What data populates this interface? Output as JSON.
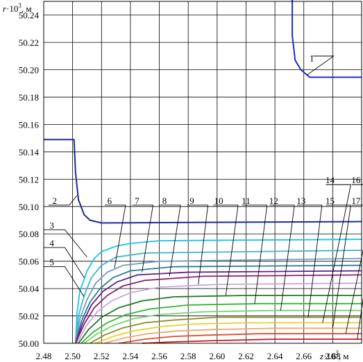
{
  "chart_data": {
    "type": "line",
    "xlabel": "z·10³, м",
    "ylabel": "r·10³, м",
    "x_label_parts": [
      "z",
      "·10",
      "3",
      ", м"
    ],
    "y_label_parts": [
      "r",
      "·10",
      "3",
      ", м"
    ],
    "xlim": [
      2.48,
      2.7
    ],
    "ylim": [
      50.0,
      50.25
    ],
    "grid": true,
    "x_ticks": [
      "2.48",
      "2.50",
      "2.52",
      "2.54",
      "2.56",
      "2.58",
      "2.60",
      "2.62",
      "2.64",
      "2.66",
      "2.68"
    ],
    "y_ticks": [
      "50.00",
      "50.02",
      "50.04",
      "50.06",
      "50.08",
      "50.10",
      "50.12",
      "50.14",
      "50.16",
      "50.18",
      "50.20",
      "50.22",
      "50.24"
    ],
    "series": [
      {
        "name": "1",
        "color": "#1a2fc8",
        "points": [
          [
            2.652,
            50.26
          ],
          [
            2.652,
            50.225
          ],
          [
            2.654,
            50.207
          ],
          [
            2.658,
            50.2
          ],
          [
            2.664,
            50.1945
          ],
          [
            2.7,
            50.1945
          ]
        ]
      },
      {
        "name": "2",
        "color": "#1c2a96",
        "points": [
          [
            2.48,
            50.149
          ],
          [
            2.501,
            50.149
          ],
          [
            2.502,
            50.125
          ],
          [
            2.504,
            50.105
          ],
          [
            2.508,
            50.094
          ],
          [
            2.512,
            50.09
          ],
          [
            2.52,
            50.088
          ],
          [
            2.7,
            50.089
          ]
        ]
      },
      {
        "name": "3",
        "color": "#19c3ea",
        "points": [
          [
            2.502,
            50.0
          ],
          [
            2.503,
            50.022
          ],
          [
            2.505,
            50.038
          ],
          [
            2.51,
            50.053
          ],
          [
            2.515,
            50.062
          ],
          [
            2.52,
            50.067
          ],
          [
            2.53,
            50.071
          ],
          [
            2.54,
            50.073
          ],
          [
            2.56,
            50.075
          ],
          [
            2.7,
            50.076
          ]
        ]
      },
      {
        "name": "4",
        "color": "#3cb7cf",
        "points": [
          [
            2.502,
            50.0
          ],
          [
            2.504,
            50.02
          ],
          [
            2.508,
            50.035
          ],
          [
            2.513,
            50.048
          ],
          [
            2.52,
            50.057
          ],
          [
            2.53,
            50.063
          ],
          [
            2.55,
            50.066
          ],
          [
            2.7,
            50.068
          ]
        ]
      },
      {
        "name": "5",
        "color": "#6d9fbe",
        "points": [
          [
            2.502,
            50.0
          ],
          [
            2.505,
            50.018
          ],
          [
            2.51,
            50.032
          ],
          [
            2.516,
            50.044
          ],
          [
            2.524,
            50.052
          ],
          [
            2.535,
            50.057
          ],
          [
            2.56,
            50.06
          ],
          [
            2.7,
            50.062
          ]
        ]
      },
      {
        "name": "6",
        "color": "#277f8e",
        "points": [
          [
            2.502,
            50.0
          ],
          [
            2.506,
            50.016
          ],
          [
            2.512,
            50.03
          ],
          [
            2.519,
            50.04
          ],
          [
            2.528,
            50.048
          ],
          [
            2.54,
            50.053
          ],
          [
            2.57,
            50.056
          ],
          [
            2.7,
            50.057
          ]
        ]
      },
      {
        "name": "7",
        "color": "#5a1d8c",
        "points": [
          [
            2.502,
            50.0
          ],
          [
            2.507,
            50.015
          ],
          [
            2.513,
            50.028
          ],
          [
            2.521,
            50.038
          ],
          [
            2.531,
            50.045
          ],
          [
            2.545,
            50.05
          ],
          [
            2.58,
            50.052
          ],
          [
            2.7,
            50.053
          ]
        ]
      },
      {
        "name": "8",
        "color": "#8a1f6e",
        "points": [
          [
            2.502,
            50.0
          ],
          [
            2.508,
            50.014
          ],
          [
            2.515,
            50.026
          ],
          [
            2.524,
            50.035
          ],
          [
            2.535,
            50.042
          ],
          [
            2.55,
            50.046
          ],
          [
            2.59,
            50.049
          ],
          [
            2.7,
            50.05
          ]
        ]
      },
      {
        "name": "9",
        "color": "#c9a6e6",
        "points": [
          [
            2.503,
            50.0
          ],
          [
            2.509,
            50.012
          ],
          [
            2.517,
            50.023
          ],
          [
            2.527,
            50.031
          ],
          [
            2.54,
            50.037
          ],
          [
            2.56,
            50.041
          ],
          [
            2.6,
            50.043
          ],
          [
            2.7,
            50.044
          ]
        ]
      },
      {
        "name": "10",
        "color": "#1c7a1c",
        "points": [
          [
            2.504,
            50.0
          ],
          [
            2.511,
            50.01
          ],
          [
            2.52,
            50.019
          ],
          [
            2.532,
            50.026
          ],
          [
            2.548,
            50.031
          ],
          [
            2.57,
            50.034
          ],
          [
            2.62,
            50.035
          ],
          [
            2.7,
            50.035
          ]
        ]
      },
      {
        "name": "11",
        "color": "#2fb82f",
        "points": [
          [
            2.506,
            50.0
          ],
          [
            2.514,
            50.008
          ],
          [
            2.524,
            50.015
          ],
          [
            2.537,
            50.021
          ],
          [
            2.553,
            50.025
          ],
          [
            2.58,
            50.028
          ],
          [
            2.63,
            50.029
          ],
          [
            2.7,
            50.029
          ]
        ]
      },
      {
        "name": "12",
        "color": "#6bd86b",
        "points": [
          [
            2.508,
            50.0
          ],
          [
            2.517,
            50.007
          ],
          [
            2.528,
            50.013
          ],
          [
            2.542,
            50.018
          ],
          [
            2.56,
            50.021
          ],
          [
            2.59,
            50.023
          ],
          [
            2.64,
            50.024
          ],
          [
            2.7,
            50.024
          ]
        ]
      },
      {
        "name": "13",
        "color": "#8a8a1e",
        "points": [
          [
            2.512,
            50.0
          ],
          [
            2.522,
            50.006
          ],
          [
            2.534,
            50.011
          ],
          [
            2.55,
            50.015
          ],
          [
            2.57,
            50.017
          ],
          [
            2.6,
            50.019
          ],
          [
            2.65,
            50.019
          ],
          [
            2.7,
            50.019
          ]
        ]
      },
      {
        "name": "14",
        "color": "#e8d030",
        "points": [
          [
            2.516,
            50.0
          ],
          [
            2.528,
            50.005
          ],
          [
            2.542,
            50.009
          ],
          [
            2.56,
            50.012
          ],
          [
            2.582,
            50.014
          ],
          [
            2.62,
            50.015
          ],
          [
            2.7,
            50.015
          ]
        ]
      },
      {
        "name": "15",
        "color": "#f0a868",
        "points": [
          [
            2.522,
            50.0
          ],
          [
            2.536,
            50.004
          ],
          [
            2.552,
            50.007
          ],
          [
            2.572,
            50.009
          ],
          [
            2.596,
            50.01
          ],
          [
            2.64,
            50.011
          ],
          [
            2.7,
            50.011
          ]
        ]
      },
      {
        "name": "16",
        "color": "#e24a2a",
        "points": [
          [
            2.532,
            50.0
          ],
          [
            2.55,
            50.003
          ],
          [
            2.57,
            50.005
          ],
          [
            2.595,
            50.006
          ],
          [
            2.63,
            50.007
          ],
          [
            2.7,
            50.007
          ]
        ]
      },
      {
        "name": "17",
        "color": "#d01818",
        "points": [
          [
            2.548,
            50.0
          ],
          [
            2.57,
            50.001
          ],
          [
            2.6,
            50.002
          ],
          [
            2.64,
            50.003
          ],
          [
            2.7,
            50.003
          ]
        ]
      }
    ],
    "labels": [
      {
        "name": "1",
        "x": 2.664,
        "y": 50.204,
        "lx": 2.672,
        "ly": 50.21,
        "cx": 2.662,
        "cy": 50.196
      },
      {
        "name": "2",
        "x": 2.486,
        "y": 50.1,
        "lx": 2.489,
        "ly": 50.101,
        "cx": 2.503,
        "cy": 50.108
      },
      {
        "name": "3",
        "x": 2.484,
        "y": 50.082,
        "lx": 2.486,
        "ly": 50.083,
        "cx": 2.51,
        "cy": 50.063
      },
      {
        "name": "4",
        "x": 2.484,
        "y": 50.069,
        "lx": 2.486,
        "ly": 50.07,
        "cx": 2.508,
        "cy": 50.048
      },
      {
        "name": "5",
        "x": 2.484,
        "y": 50.055,
        "lx": 2.486,
        "ly": 50.056,
        "cx": 2.508,
        "cy": 50.034
      },
      {
        "name": "6",
        "x": 2.524,
        "y": 50.1,
        "lx": 2.528,
        "ly": 50.101,
        "cx": 2.529,
        "cy": 50.055
      },
      {
        "name": "7",
        "x": 2.543,
        "y": 50.1,
        "lx": 2.547,
        "ly": 50.101,
        "cx": 2.548,
        "cy": 50.052
      },
      {
        "name": "8",
        "x": 2.562,
        "y": 50.1,
        "lx": 2.566,
        "ly": 50.101,
        "cx": 2.567,
        "cy": 50.049
      },
      {
        "name": "9",
        "x": 2.581,
        "y": 50.1,
        "lx": 2.585,
        "ly": 50.101,
        "cx": 2.587,
        "cy": 50.043
      },
      {
        "name": "10",
        "x": 2.598,
        "y": 50.1,
        "lx": 2.603,
        "ly": 50.101,
        "cx": 2.606,
        "cy": 50.035
      },
      {
        "name": "11",
        "x": 2.617,
        "y": 50.1,
        "lx": 2.623,
        "ly": 50.101,
        "cx": 2.626,
        "cy": 50.029
      },
      {
        "name": "12",
        "x": 2.636,
        "y": 50.1,
        "lx": 2.642,
        "ly": 50.101,
        "cx": 2.644,
        "cy": 50.024
      },
      {
        "name": "13",
        "x": 2.655,
        "y": 50.1,
        "lx": 2.661,
        "ly": 50.101,
        "cx": 2.663,
        "cy": 50.019
      },
      {
        "name": "14",
        "x": 2.675,
        "y": 50.115,
        "lx": 2.681,
        "ly": 50.116,
        "cx": 2.673,
        "cy": 50.015
      },
      {
        "name": "15",
        "x": 2.675,
        "y": 50.1,
        "lx": 2.681,
        "ly": 50.101,
        "cx": 2.68,
        "cy": 50.011
      },
      {
        "name": "16",
        "x": 2.693,
        "y": 50.115,
        "lx": 2.699,
        "ly": 50.116,
        "cx": 2.689,
        "cy": 50.007
      },
      {
        "name": "17",
        "x": 2.693,
        "y": 50.1,
        "lx": 2.699,
        "ly": 50.101,
        "cx": 2.697,
        "cy": 50.003
      }
    ]
  }
}
